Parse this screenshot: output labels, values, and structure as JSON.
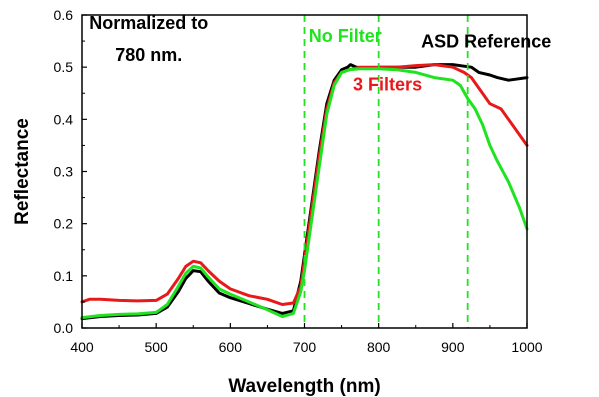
{
  "chart_data": {
    "type": "line",
    "title": "",
    "xlabel": "Wavelength (nm)",
    "ylabel": "Reflectance",
    "xlim": [
      400,
      1000
    ],
    "ylim": [
      0.0,
      0.6
    ],
    "xticks": [
      400,
      500,
      600,
      700,
      800,
      900,
      1000
    ],
    "xtick_labels": [
      "400",
      "500",
      "600",
      "700",
      "800",
      "900",
      "1000"
    ],
    "yticks": [
      0.0,
      0.1,
      0.2,
      0.3,
      0.4,
      0.5,
      0.6
    ],
    "ytick_labels": [
      "0.0",
      "0.1",
      "0.2",
      "0.3",
      "0.4",
      "0.5",
      "0.6"
    ],
    "grid": false,
    "legend": "none",
    "series": [
      {
        "name": "ASD Reference",
        "color": "#000000",
        "x": [
          400,
          425,
          450,
          475,
          500,
          515,
          530,
          540,
          550,
          560,
          570,
          585,
          600,
          625,
          650,
          670,
          685,
          695,
          700,
          710,
          720,
          730,
          740,
          750,
          758,
          762,
          770,
          790,
          800,
          825,
          850,
          875,
          900,
          925,
          935,
          950,
          960,
          975,
          985,
          1000
        ],
        "y": [
          0.018,
          0.022,
          0.024,
          0.025,
          0.028,
          0.04,
          0.07,
          0.095,
          0.11,
          0.108,
          0.09,
          0.067,
          0.058,
          0.047,
          0.036,
          0.028,
          0.033,
          0.09,
          0.14,
          0.24,
          0.34,
          0.43,
          0.475,
          0.495,
          0.5,
          0.505,
          0.5,
          0.498,
          0.5,
          0.5,
          0.5,
          0.505,
          0.505,
          0.5,
          0.49,
          0.485,
          0.48,
          0.475,
          0.477,
          0.48
        ]
      },
      {
        "name": "3 Filters",
        "color": "#e8191b",
        "x": [
          400,
          410,
          425,
          450,
          475,
          500,
          515,
          530,
          540,
          550,
          560,
          570,
          585,
          600,
          625,
          650,
          670,
          685,
          695,
          700,
          710,
          720,
          730,
          740,
          750,
          760,
          775,
          800,
          825,
          850,
          875,
          900,
          915,
          925,
          940,
          950,
          965,
          980,
          1000
        ],
        "y": [
          0.05,
          0.055,
          0.055,
          0.053,
          0.052,
          0.053,
          0.065,
          0.095,
          0.118,
          0.128,
          0.125,
          0.11,
          0.09,
          0.075,
          0.062,
          0.055,
          0.045,
          0.048,
          0.08,
          0.13,
          0.23,
          0.33,
          0.42,
          0.47,
          0.49,
          0.495,
          0.5,
          0.5,
          0.5,
          0.503,
          0.505,
          0.5,
          0.49,
          0.48,
          0.45,
          0.43,
          0.42,
          0.39,
          0.35
        ]
      },
      {
        "name": "No Filter",
        "color": "#1ee31e",
        "x": [
          400,
          425,
          450,
          475,
          500,
          515,
          530,
          540,
          550,
          560,
          570,
          585,
          600,
          625,
          650,
          670,
          685,
          695,
          700,
          710,
          720,
          730,
          740,
          750,
          760,
          775,
          800,
          825,
          850,
          875,
          900,
          910,
          920,
          930,
          940,
          950,
          960,
          975,
          990,
          1000
        ],
        "y": [
          0.02,
          0.024,
          0.026,
          0.027,
          0.03,
          0.045,
          0.08,
          0.105,
          0.118,
          0.115,
          0.098,
          0.075,
          0.065,
          0.05,
          0.035,
          0.022,
          0.028,
          0.07,
          0.11,
          0.21,
          0.31,
          0.41,
          0.465,
          0.49,
          0.495,
          0.497,
          0.497,
          0.495,
          0.49,
          0.48,
          0.475,
          0.465,
          0.44,
          0.42,
          0.39,
          0.35,
          0.32,
          0.28,
          0.23,
          0.19
        ]
      }
    ],
    "vlines": [
      {
        "x": 700,
        "color": "#1ee31e"
      },
      {
        "x": 800,
        "color": "#1ee31e"
      },
      {
        "x": 920,
        "color": "#1ee31e"
      }
    ],
    "annotations": [
      {
        "text": "Normalized to",
        "x": 490,
        "y": 0.573,
        "color": "#000000"
      },
      {
        "text": "780 nm.",
        "x": 490,
        "y": 0.512,
        "color": "#000000"
      },
      {
        "text": "No Filter",
        "x": 755,
        "y": 0.548,
        "color": "#1ee31e"
      },
      {
        "text": "ASD Reference",
        "x": 945,
        "y": 0.538,
        "color": "#000000"
      },
      {
        "text": "3 Filters",
        "x": 812,
        "y": 0.455,
        "color": "#e8191b"
      }
    ]
  }
}
